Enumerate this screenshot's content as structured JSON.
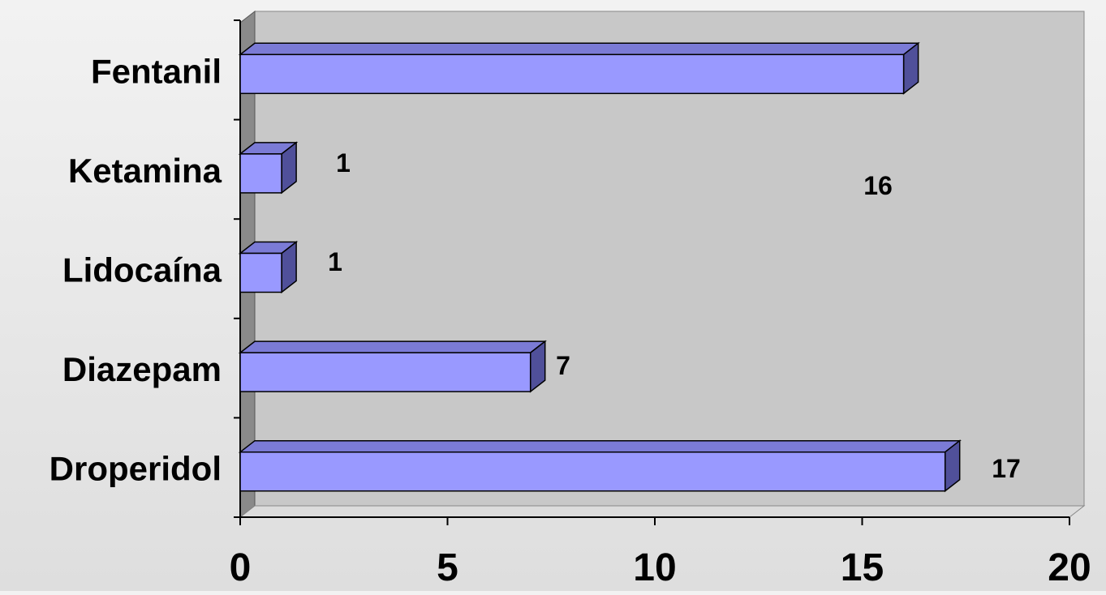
{
  "chart_data": {
    "type": "bar",
    "orientation": "horizontal",
    "style": "3d",
    "categories": [
      "Fentanil",
      "Ketamina",
      "Lidocaína",
      "Diazepam",
      "Droperidol"
    ],
    "values": [
      16,
      1,
      1,
      7,
      17
    ],
    "data_labels": [
      "16",
      "1",
      "1",
      "7",
      "17"
    ],
    "x_ticks": [
      "0",
      "5",
      "10",
      "15",
      "20"
    ],
    "xlim": [
      0,
      20
    ],
    "grid": false,
    "legend": "none",
    "colors": {
      "bar_front": "#9999ff",
      "bar_top": "#7b7bd6",
      "bar_side": "#50509a",
      "wall": "#c8c8c8",
      "wall_side": "#8a8a8a"
    }
  }
}
